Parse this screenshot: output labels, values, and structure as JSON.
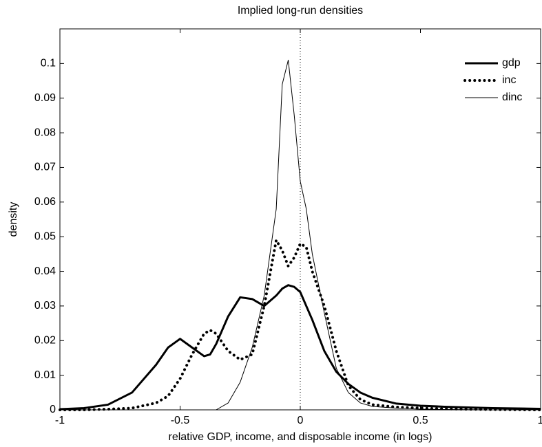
{
  "chart_data": {
    "type": "line",
    "title": "Implied long-run densities",
    "xlabel": "relative GDP, income, and disposable income (in logs)",
    "ylabel": "density",
    "x": [
      -1,
      -0.9,
      -0.8,
      -0.7,
      -0.6,
      -0.55,
      -0.5,
      -0.45,
      -0.4,
      -0.375,
      -0.35,
      -0.3,
      -0.25,
      -0.2,
      -0.15,
      -0.1,
      -0.075,
      -0.05,
      -0.025,
      0,
      0.025,
      0.05,
      0.1,
      0.15,
      0.2,
      0.25,
      0.3,
      0.4,
      0.5,
      0.6,
      0.8,
      1
    ],
    "series": [
      {
        "name": "gdp",
        "color": "#000000",
        "linewidth": 3,
        "linestyle": "solid",
        "values": [
          0.0002,
          0.0005,
          0.0015,
          0.005,
          0.013,
          0.018,
          0.0205,
          0.018,
          0.0155,
          0.016,
          0.019,
          0.027,
          0.0325,
          0.032,
          0.03,
          0.033,
          0.035,
          0.036,
          0.0355,
          0.034,
          0.03,
          0.026,
          0.017,
          0.011,
          0.0075,
          0.005,
          0.0035,
          0.0018,
          0.0012,
          0.0009,
          0.0005,
          0.0003
        ]
      },
      {
        "name": "inc",
        "color": "#000000",
        "linewidth": 4,
        "linestyle": "dotted",
        "values": [
          0,
          0,
          0.0002,
          0.0005,
          0.002,
          0.004,
          0.009,
          0.016,
          0.022,
          0.023,
          0.022,
          0.017,
          0.0145,
          0.016,
          0.03,
          0.049,
          0.046,
          0.0415,
          0.044,
          0.048,
          0.047,
          0.04,
          0.03,
          0.017,
          0.007,
          0.003,
          0.0015,
          0.0008,
          0.0005,
          0.0003,
          0.0001,
          0
        ]
      },
      {
        "name": "dinc",
        "color": "#000000",
        "linewidth": 1,
        "linestyle": "solid",
        "values": [
          0,
          0,
          0,
          0,
          0,
          0,
          0,
          0,
          0,
          0,
          0,
          0.002,
          0.008,
          0.018,
          0.033,
          0.058,
          0.094,
          0.101,
          0.085,
          0.066,
          0.058,
          0.045,
          0.028,
          0.012,
          0.005,
          0.002,
          0.001,
          0.0005,
          0.0002,
          0.0001,
          0,
          0
        ]
      }
    ],
    "xlim": [
      -1,
      1
    ],
    "xticks": [
      -1,
      -0.5,
      0,
      0.5,
      1
    ],
    "ylim": [
      0,
      0.11
    ],
    "yticks": [
      0,
      0.01,
      0.02,
      0.03,
      0.04,
      0.05,
      0.06,
      0.07,
      0.08,
      0.09,
      0.1
    ],
    "vline": 0,
    "grid": false,
    "legend": "top-right"
  }
}
